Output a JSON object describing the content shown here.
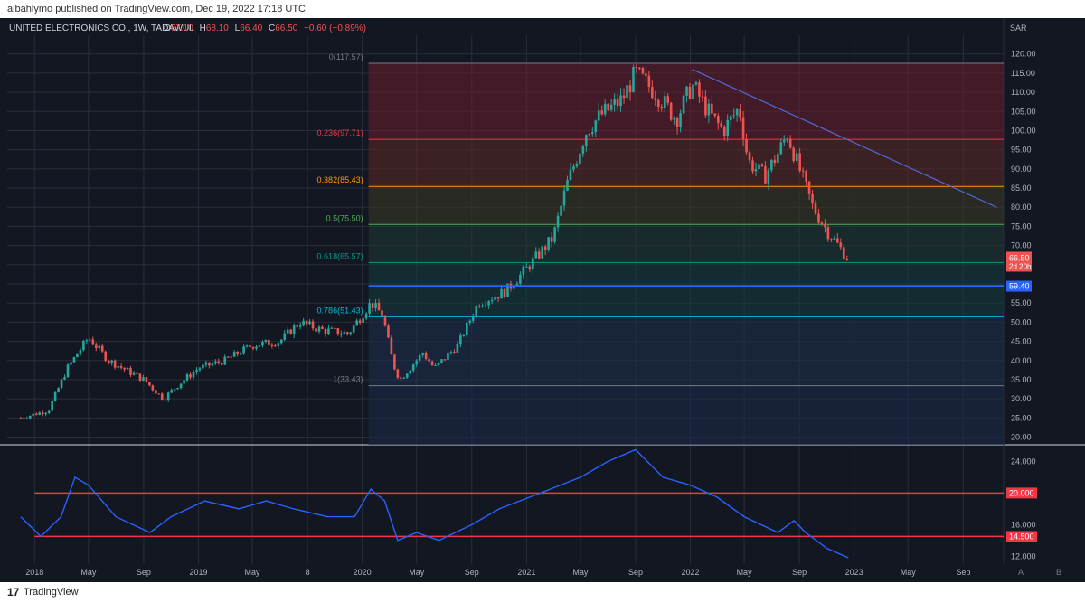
{
  "header": {
    "published": "albahlymo published on TradingView.com, Dec 19, 2022 17:18 UTC"
  },
  "symbol": {
    "name": "UNITED ELECTRONICS CO., 1W, TADAWUL",
    "o_label": "O",
    "o": "67.10",
    "h_label": "H",
    "h": "68.10",
    "l_label": "L",
    "l": "66.40",
    "c_label": "C",
    "c": "66.50",
    "change": "−0.60 (−0.89%)"
  },
  "currency": "SAR",
  "footer": {
    "logo": "17",
    "brand": "TradingView"
  },
  "colors": {
    "background": "#131722",
    "grid": "#2a2e39",
    "up": "#26a69a",
    "down": "#ef5350",
    "trendline": "#4f6bd8",
    "rsi_line": "#2962ff",
    "red_level": "#f23645",
    "support": "#2962ff"
  },
  "chart_data": [
    {
      "type": "candlestick",
      "title": "UNITED ELECTRONICS CO., 1W, TADAWUL",
      "x_ticks": [
        "2018",
        "May",
        "Sep",
        "2019",
        "May",
        "8",
        "2020",
        "May",
        "Sep",
        "2021",
        "May",
        "Sep",
        "2022",
        "May",
        "Sep",
        "2023",
        "May",
        "Sep"
      ],
      "y_ticks": [
        "120.00",
        "115.00",
        "110.00",
        "105.00",
        "100.00",
        "95.00",
        "90.00",
        "85.00",
        "80.00",
        "75.00",
        "70.00",
        "65.00",
        "60.00",
        "55.00",
        "50.00",
        "45.00",
        "40.00",
        "35.00",
        "30.00",
        "25.00",
        "20.00"
      ],
      "ylim": [
        18,
        123
      ],
      "price_path": [
        {
          "date": "2017-12-01",
          "value": 25
        },
        {
          "date": "2018-02-01",
          "value": 27
        },
        {
          "date": "2018-03-15",
          "value": 38
        },
        {
          "date": "2018-05-01",
          "value": 46
        },
        {
          "date": "2018-06-15",
          "value": 40
        },
        {
          "date": "2018-09-01",
          "value": 35
        },
        {
          "date": "2018-10-15",
          "value": 30
        },
        {
          "date": "2018-11-20",
          "value": 34
        },
        {
          "date": "2019-01-01",
          "value": 38
        },
        {
          "date": "2019-03-01",
          "value": 40
        },
        {
          "date": "2019-05-01",
          "value": 44
        },
        {
          "date": "2019-07-01",
          "value": 45
        },
        {
          "date": "2019-08-15",
          "value": 50
        },
        {
          "date": "2019-10-01",
          "value": 48
        },
        {
          "date": "2019-12-01",
          "value": 47
        },
        {
          "date": "2020-01-20",
          "value": 55
        },
        {
          "date": "2020-02-15",
          "value": 52
        },
        {
          "date": "2020-03-10",
          "value": 39
        },
        {
          "date": "2020-03-25",
          "value": 35
        },
        {
          "date": "2020-05-15",
          "value": 42
        },
        {
          "date": "2020-06-10",
          "value": 38
        },
        {
          "date": "2020-08-01",
          "value": 44
        },
        {
          "date": "2020-09-15",
          "value": 55
        },
        {
          "date": "2020-11-15",
          "value": 58
        },
        {
          "date": "2021-01-01",
          "value": 64
        },
        {
          "date": "2021-03-01",
          "value": 72
        },
        {
          "date": "2021-04-01",
          "value": 86
        },
        {
          "date": "2021-05-15",
          "value": 100
        },
        {
          "date": "2021-06-15",
          "value": 104
        },
        {
          "date": "2021-08-01",
          "value": 108
        },
        {
          "date": "2021-09-01",
          "value": 115
        },
        {
          "date": "2021-10-15",
          "value": 110
        },
        {
          "date": "2021-12-01",
          "value": 103
        },
        {
          "date": "2022-01-05",
          "value": 112
        },
        {
          "date": "2022-02-15",
          "value": 104
        },
        {
          "date": "2022-03-15",
          "value": 100
        },
        {
          "date": "2022-04-20",
          "value": 106
        },
        {
          "date": "2022-05-10",
          "value": 92
        },
        {
          "date": "2022-06-15",
          "value": 88
        },
        {
          "date": "2022-07-15",
          "value": 94
        },
        {
          "date": "2022-08-05",
          "value": 99
        },
        {
          "date": "2022-09-01",
          "value": 90
        },
        {
          "date": "2022-10-01",
          "value": 80
        },
        {
          "date": "2022-11-01",
          "value": 74
        },
        {
          "date": "2022-12-19",
          "value": 66.5
        }
      ],
      "fib_levels": [
        {
          "label": "0(117.57)",
          "value": 117.57,
          "color": "#787b86",
          "zone": "#6b1f2e"
        },
        {
          "label": "0.236(97.71)",
          "value": 97.71,
          "color": "#f23645",
          "zone": "#5c2a26"
        },
        {
          "label": "0.382(85.43)",
          "value": 85.43,
          "color": "#ff9800",
          "zone": "#3d3a25"
        },
        {
          "label": "0.5(75.50)",
          "value": 75.5,
          "color": "#4caf50",
          "zone": "#1f3b36"
        },
        {
          "label": "0.618(65.57)",
          "value": 65.57,
          "color": "#089981",
          "zone": "#123e3f"
        },
        {
          "label": "0.786(51.43)",
          "value": 51.43,
          "color": "#00bcd4",
          "zone": "#1e2f4e"
        },
        {
          "label": "1(33.43)",
          "value": 33.43,
          "color": "#787b86",
          "zone": null
        }
      ],
      "support_level": {
        "value": 59.4,
        "label": "59.40"
      },
      "trendline": {
        "from": {
          "date": "2022-01-05",
          "value": 116
        },
        "to": {
          "date": "2023-11-15",
          "value": 80
        }
      },
      "last_price": {
        "value": 66.5,
        "label": "66.50",
        "countdown": "2d 20h"
      }
    },
    {
      "type": "line",
      "y_ticks": [
        "24.000",
        "20.000",
        "16.000",
        "12.000"
      ],
      "ylim": [
        11,
        26
      ],
      "levels": [
        {
          "value": 20,
          "label": "20.000"
        },
        {
          "value": 14.5,
          "label": "14.500"
        }
      ],
      "series": [
        {
          "values": [
            {
              "date": "2017-12-01",
              "value": 17
            },
            {
              "date": "2018-01-15",
              "value": 14.5
            },
            {
              "date": "2018-03-01",
              "value": 17
            },
            {
              "date": "2018-04-01",
              "value": 22
            },
            {
              "date": "2018-05-01",
              "value": 21
            },
            {
              "date": "2018-07-01",
              "value": 17
            },
            {
              "date": "2018-09-15",
              "value": 15
            },
            {
              "date": "2018-11-01",
              "value": 17
            },
            {
              "date": "2019-01-15",
              "value": 19
            },
            {
              "date": "2019-04-01",
              "value": 18
            },
            {
              "date": "2019-06-01",
              "value": 19
            },
            {
              "date": "2019-08-01",
              "value": 18
            },
            {
              "date": "2019-10-15",
              "value": 17
            },
            {
              "date": "2019-12-15",
              "value": 17
            },
            {
              "date": "2020-01-20",
              "value": 20.5
            },
            {
              "date": "2020-02-20",
              "value": 19
            },
            {
              "date": "2020-03-20",
              "value": 14
            },
            {
              "date": "2020-05-01",
              "value": 15
            },
            {
              "date": "2020-06-20",
              "value": 14
            },
            {
              "date": "2020-09-01",
              "value": 16
            },
            {
              "date": "2020-11-01",
              "value": 18
            },
            {
              "date": "2021-02-01",
              "value": 20
            },
            {
              "date": "2021-05-01",
              "value": 22
            },
            {
              "date": "2021-07-01",
              "value": 24
            },
            {
              "date": "2021-09-01",
              "value": 25.5
            },
            {
              "date": "2021-11-01",
              "value": 22
            },
            {
              "date": "2022-01-01",
              "value": 21
            },
            {
              "date": "2022-03-01",
              "value": 19.5
            },
            {
              "date": "2022-05-01",
              "value": 17
            },
            {
              "date": "2022-07-15",
              "value": 15
            },
            {
              "date": "2022-08-20",
              "value": 16.5
            },
            {
              "date": "2022-09-15",
              "value": 15
            },
            {
              "date": "2022-11-01",
              "value": 13
            },
            {
              "date": "2022-12-19",
              "value": 11.8
            }
          ]
        }
      ]
    }
  ],
  "pane_labels": [
    "A",
    "B"
  ]
}
